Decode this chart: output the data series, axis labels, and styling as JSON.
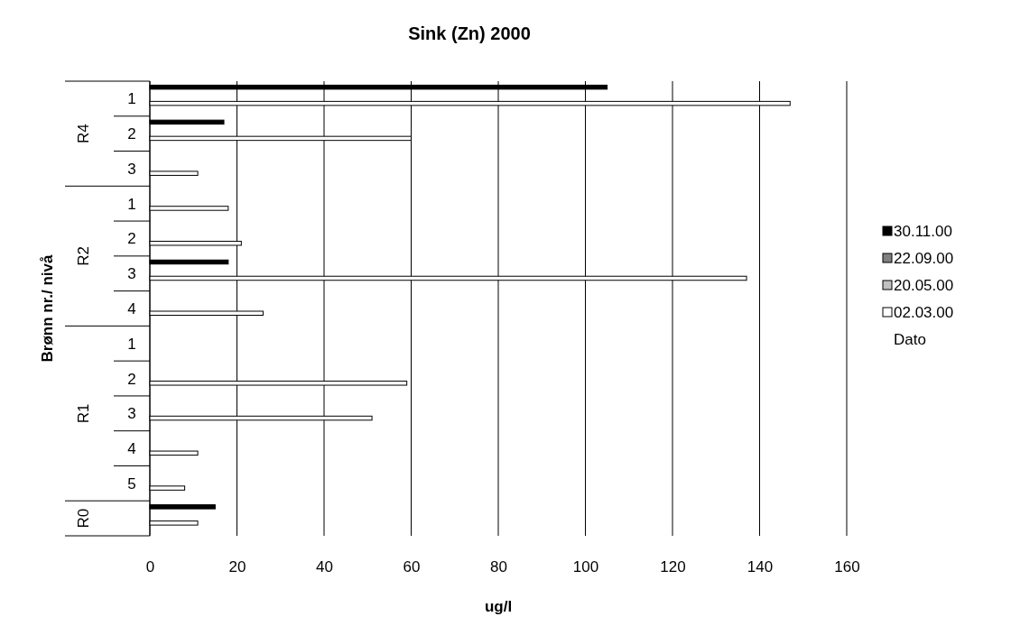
{
  "chart_data": {
    "type": "bar",
    "orientation": "horizontal",
    "title": "Sink (Zn) 2000",
    "xlabel": "ug/l",
    "ylabel": "Brønn nr./ nivå",
    "legend_title": "Dato",
    "categories": [
      "1",
      "2",
      "3",
      "1",
      "2",
      "3",
      "4",
      "1",
      "2",
      "3",
      "4",
      "5",
      null
    ],
    "annotations": [
      "R4",
      "R2",
      "R1",
      "R0"
    ],
    "series": [
      {
        "name": "30.11.00",
        "color": "#000000",
        "values": [
          105,
          17,
          null,
          null,
          null,
          18,
          null,
          null,
          null,
          null,
          null,
          null,
          15
        ]
      },
      {
        "name": "22.09.00",
        "color": "#808080",
        "values": [
          null,
          null,
          null,
          null,
          null,
          null,
          null,
          null,
          null,
          null,
          null,
          null,
          null
        ]
      },
      {
        "name": "20.05.00",
        "color": "#c0c0c0",
        "values": [
          null,
          null,
          null,
          null,
          null,
          null,
          null,
          null,
          null,
          null,
          null,
          null,
          null
        ]
      },
      {
        "name": "02.03.00",
        "color": "#ffffff",
        "values": [
          147,
          60,
          11,
          18,
          21,
          137,
          26,
          null,
          59,
          51,
          11,
          8,
          11
        ]
      }
    ],
    "xlim": [
      0,
      160
    ],
    "xticks": [
      0,
      20,
      40,
      60,
      80,
      100,
      120,
      140,
      160
    ],
    "grid": "x",
    "legend": "right"
  }
}
